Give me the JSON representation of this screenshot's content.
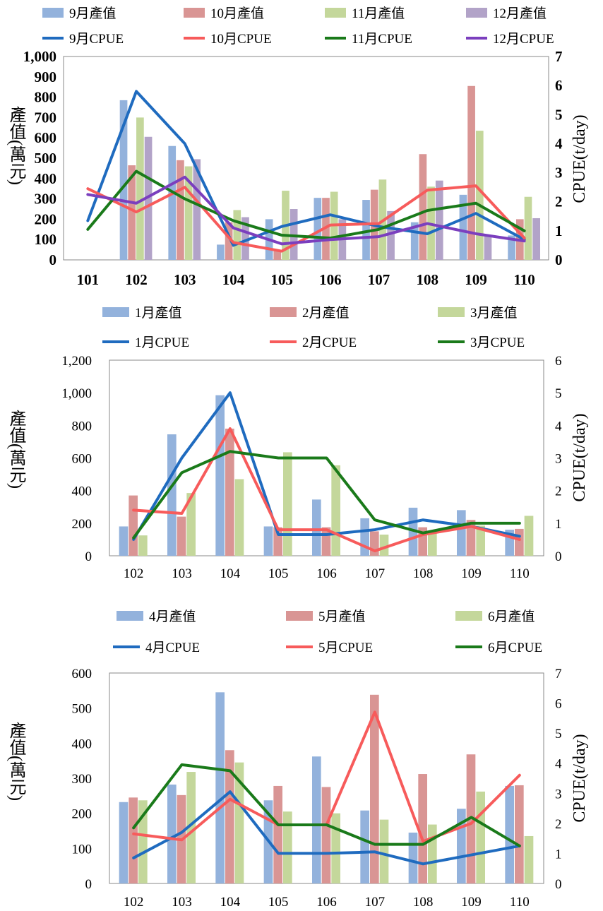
{
  "chart_data": [
    {
      "type": "bar+line",
      "categories": [
        "101",
        "102",
        "103",
        "104",
        "105",
        "106",
        "107",
        "108",
        "109",
        "110"
      ],
      "ylabel_left": "產值(萬元)",
      "ylabel_right": "CPUE(t/day)",
      "ylim_left": [
        0,
        1000
      ],
      "ylim_right": [
        0,
        7
      ],
      "left_ticks": [
        "0",
        "100",
        "200",
        "300",
        "400",
        "500",
        "600",
        "700",
        "800",
        "900",
        "1,000"
      ],
      "right_ticks": [
        "0",
        "1",
        "2",
        "3",
        "4",
        "5",
        "6",
        "7"
      ],
      "bar_series": [
        {
          "name": "9月產值",
          "color": "#93b2dc",
          "values": [
            0,
            785,
            560,
            75,
            200,
            305,
            295,
            185,
            320,
            120
          ]
        },
        {
          "name": "10月產值",
          "color": "#d99594",
          "values": [
            0,
            465,
            490,
            185,
            50,
            305,
            345,
            520,
            855,
            200
          ]
        },
        {
          "name": "11月產值",
          "color": "#c4d79b",
          "values": [
            0,
            700,
            460,
            245,
            340,
            335,
            395,
            360,
            635,
            310
          ]
        },
        {
          "name": "12月產值",
          "color": "#b2a3c8",
          "values": [
            0,
            605,
            495,
            210,
            250,
            200,
            240,
            390,
            120,
            205
          ]
        }
      ],
      "line_series": [
        {
          "name": "9月CPUE",
          "color": "#1f6bbf",
          "values": [
            1.35,
            5.8,
            4.0,
            0.5,
            1.15,
            1.55,
            1.15,
            0.9,
            1.6,
            0.7
          ]
        },
        {
          "name": "10月CPUE",
          "color": "#f75b5b",
          "values": [
            2.45,
            1.65,
            2.5,
            0.6,
            0.3,
            1.2,
            1.25,
            2.4,
            2.55,
            0.75
          ]
        },
        {
          "name": "11月CPUE",
          "color": "#1a7a1a",
          "values": [
            1.05,
            3.05,
            2.1,
            1.35,
            0.85,
            0.75,
            1.05,
            1.7,
            1.95,
            1.0
          ]
        },
        {
          "name": "12月CPUE",
          "color": "#7b3fbe",
          "values": [
            2.25,
            1.95,
            2.85,
            1.1,
            0.55,
            0.7,
            0.8,
            1.25,
            0.9,
            0.65
          ]
        }
      ]
    },
    {
      "type": "bar+line",
      "categories": [
        "102",
        "103",
        "104",
        "105",
        "106",
        "107",
        "108",
        "109",
        "110"
      ],
      "ylabel_left": "產值(萬元)",
      "ylabel_right": "CPUE(t/day)",
      "ylim_left": [
        0,
        1200
      ],
      "ylim_right": [
        0,
        6
      ],
      "left_ticks": [
        "0",
        "200",
        "400",
        "600",
        "800",
        "1,000",
        "1,200"
      ],
      "right_ticks": [
        "0",
        "1",
        "2",
        "3",
        "4",
        "5",
        "6"
      ],
      "bar_series": [
        {
          "name": "1月產值",
          "color": "#93b2dc",
          "values": [
            180,
            745,
            985,
            180,
            345,
            230,
            295,
            280,
            160
          ]
        },
        {
          "name": "2月產值",
          "color": "#d99594",
          "values": [
            370,
            240,
            780,
            175,
            175,
            150,
            175,
            220,
            165
          ]
        },
        {
          "name": "3月產值",
          "color": "#c4d79b",
          "values": [
            125,
            385,
            470,
            635,
            555,
            130,
            140,
            185,
            245
          ]
        }
      ],
      "line_series": [
        {
          "name": "1月CPUE",
          "color": "#1f6bbf",
          "values": [
            0.5,
            3.0,
            5.0,
            0.65,
            0.65,
            0.8,
            1.1,
            0.9,
            0.6
          ]
        },
        {
          "name": "2月CPUE",
          "color": "#f75b5b",
          "values": [
            1.4,
            1.3,
            3.9,
            0.8,
            0.8,
            0.15,
            0.65,
            0.9,
            0.5
          ]
        },
        {
          "name": "3月CPUE",
          "color": "#1a7a1a",
          "values": [
            0.55,
            2.55,
            3.2,
            3.0,
            3.0,
            1.1,
            0.7,
            1.0,
            1.0
          ]
        }
      ]
    },
    {
      "type": "bar+line",
      "categories": [
        "102",
        "103",
        "104",
        "105",
        "106",
        "107",
        "108",
        "109",
        "110"
      ],
      "ylabel_left": "產值(萬元)",
      "ylabel_right": "CPUE(t/day)",
      "ylim_left": [
        0,
        600
      ],
      "ylim_right": [
        0,
        7
      ],
      "left_ticks": [
        "0",
        "100",
        "200",
        "300",
        "400",
        "500",
        "600"
      ],
      "right_ticks": [
        "0",
        "1",
        "2",
        "3",
        "4",
        "5",
        "6",
        "7"
      ],
      "bar_series": [
        {
          "name": "4月產值",
          "color": "#93b2dc",
          "values": [
            232,
            282,
            545,
            237,
            362,
            208,
            145,
            213,
            278
          ]
        },
        {
          "name": "5月產值",
          "color": "#d99594",
          "values": [
            245,
            252,
            380,
            278,
            275,
            538,
            312,
            368,
            280
          ]
        },
        {
          "name": "6月產值",
          "color": "#c4d79b",
          "values": [
            237,
            318,
            345,
            205,
            200,
            182,
            168,
            262,
            135
          ]
        }
      ],
      "line_series": [
        {
          "name": "4月CPUE",
          "color": "#1f6bbf",
          "values": [
            0.85,
            1.7,
            3.05,
            1.0,
            1.0,
            1.05,
            0.65,
            0.95,
            1.25
          ]
        },
        {
          "name": "5月CPUE",
          "color": "#f75b5b",
          "values": [
            1.65,
            1.45,
            2.8,
            1.95,
            1.95,
            5.7,
            1.4,
            2.0,
            3.6
          ]
        },
        {
          "name": "6月CPUE",
          "color": "#1a7a1a",
          "values": [
            1.85,
            3.95,
            3.75,
            1.95,
            1.95,
            1.3,
            1.3,
            2.2,
            1.25
          ]
        }
      ]
    }
  ]
}
